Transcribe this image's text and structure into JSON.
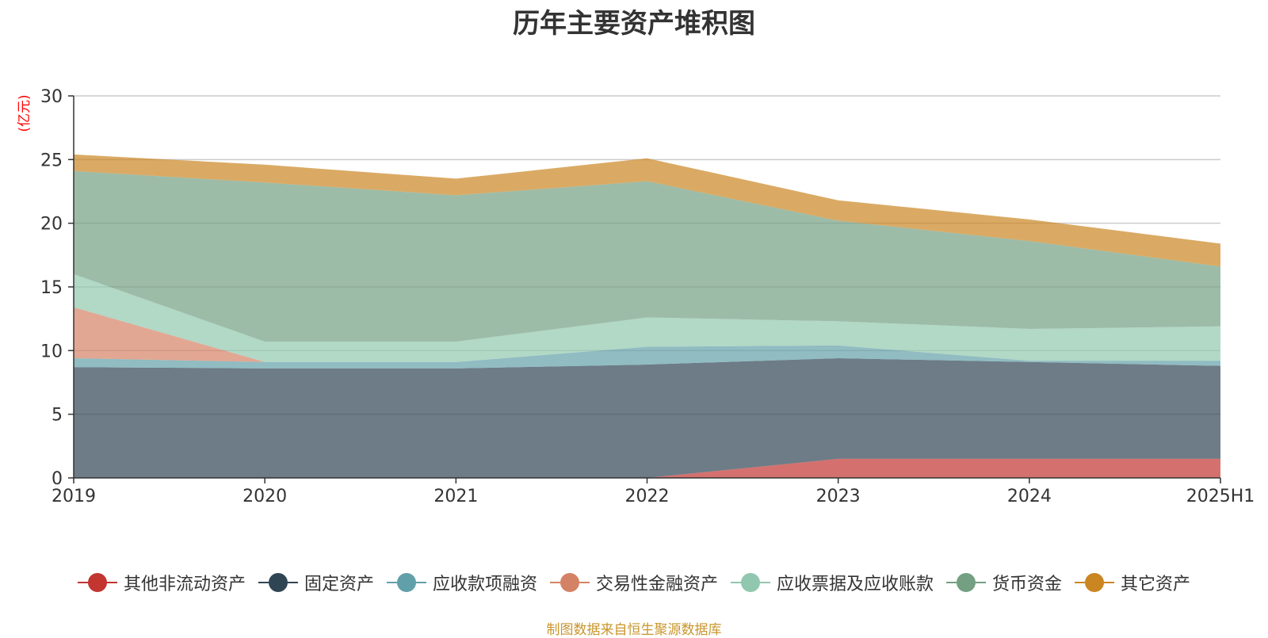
{
  "chart_data": {
    "type": "area",
    "stacked": true,
    "title": "历年主要资产堆积图",
    "ylabel": "(亿元)",
    "xlabel": "",
    "categories": [
      "2019",
      "2020",
      "2021",
      "2022",
      "2023",
      "2024",
      "2025H1"
    ],
    "ylim": [
      0,
      30
    ],
    "yticks": [
      0,
      5,
      10,
      15,
      20,
      25,
      30
    ],
    "grid": true,
    "legend_position": "bottom",
    "series": [
      {
        "name": "其他非流动资产",
        "color": "#c23531",
        "values": [
          0,
          0,
          0,
          0,
          1.5,
          1.5,
          1.5
        ]
      },
      {
        "name": "固定资产",
        "color": "#2f4554",
        "values": [
          8.7,
          8.6,
          8.6,
          8.9,
          7.9,
          7.6,
          7.3
        ]
      },
      {
        "name": "应收款项融资",
        "color": "#61a0a8",
        "values": [
          0.7,
          0.5,
          0.5,
          1.4,
          1.0,
          0.1,
          0.4
        ]
      },
      {
        "name": "交易性金融资产",
        "color": "#d48265",
        "values": [
          4.0,
          0,
          0,
          0,
          0,
          0,
          0
        ]
      },
      {
        "name": "应收票据及应收账款",
        "color": "#91c7ae",
        "values": [
          2.6,
          1.6,
          1.6,
          2.3,
          1.9,
          2.5,
          2.7
        ]
      },
      {
        "name": "货币资金",
        "color": "#749f83",
        "values": [
          8.1,
          12.5,
          11.5,
          10.7,
          7.9,
          6.9,
          4.7
        ]
      },
      {
        "name": "其它资产",
        "color": "#ca8622",
        "values": [
          1.3,
          1.4,
          1.3,
          1.8,
          1.6,
          1.7,
          1.8
        ]
      }
    ]
  },
  "source_note": "制图数据来自恒生聚源数据库"
}
